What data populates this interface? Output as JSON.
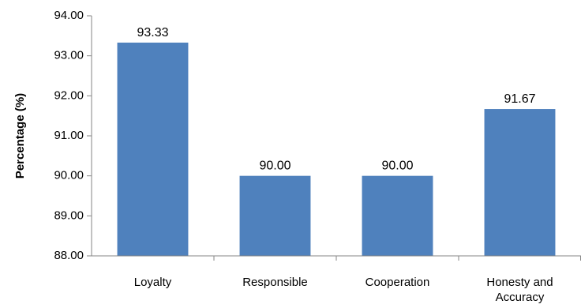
{
  "chart_data": {
    "type": "bar",
    "title": "",
    "xlabel": "",
    "ylabel": "Percentage (%)",
    "categories": [
      [
        "Loyalty"
      ],
      [
        "Responsible"
      ],
      [
        "Cooperation"
      ],
      [
        "Honesty and",
        "Accuracy"
      ]
    ],
    "values": [
      93.33,
      90.0,
      90.0,
      91.67
    ],
    "value_labels": [
      "93.33",
      "90.00",
      "90.00",
      "91.67"
    ],
    "ylim": [
      88.0,
      94.0
    ],
    "yticks": [
      88.0,
      89.0,
      90.0,
      91.0,
      92.0,
      93.0,
      94.0
    ],
    "ytick_labels": [
      "88.00",
      "89.00",
      "90.00",
      "91.00",
      "92.00",
      "93.00",
      "94.00"
    ],
    "grid": false,
    "legend": "none",
    "colors": {
      "bar": "#4f81bd",
      "axis": "#868686"
    }
  }
}
